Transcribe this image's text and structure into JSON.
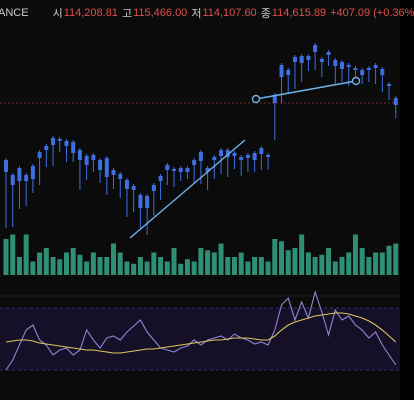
{
  "header": {
    "symbol_fragment": "ANCE",
    "open_label": "시",
    "open_value": "114,208.81",
    "high_label": "고",
    "high_value": "115,466.00",
    "low_label": "저",
    "low_value": "114,107.60",
    "close_label": "종",
    "close_value": "114,615.89",
    "change_value": "+407.09",
    "change_pct": "(+0.36%"
  },
  "colors": {
    "up": "#e0504a",
    "down": "#3d6fe0",
    "volume_up": "#a84a44",
    "volume_down": "#2f8f74",
    "trendline": "#6fb3ea",
    "rsi_line": "#8f86d6",
    "rsi_ma": "#e2c55a",
    "rsi_band": "#1a1430",
    "indicator_dot": "#1fa37a"
  },
  "chart_data": {
    "type": "candlestick",
    "candles": [
      [
        226,
        160,
        172,
        212
      ],
      [
        212,
        175,
        185,
        225
      ],
      [
        196,
        168,
        181,
        207
      ],
      [
        196,
        175,
        181,
        204
      ],
      [
        183,
        166,
        179,
        191
      ],
      [
        174,
        152,
        158,
        183
      ],
      [
        157,
        146,
        150,
        165
      ],
      [
        159,
        138,
        145,
        164
      ],
      [
        146,
        139,
        141,
        150
      ],
      [
        152,
        141,
        146,
        160
      ],
      [
        157,
        142,
        153,
        160
      ],
      [
        188,
        150,
        160,
        188
      ],
      [
        174,
        156,
        165,
        178
      ],
      [
        167,
        155,
        160,
        170
      ],
      [
        179,
        160,
        170,
        181
      ],
      [
        188,
        158,
        177,
        193
      ],
      [
        181,
        170,
        175,
        187
      ],
      [
        194,
        174,
        179,
        196
      ],
      [
        205,
        180,
        189,
        215
      ],
      [
        208,
        186,
        190,
        210
      ],
      [
        217,
        195,
        208,
        226
      ],
      [
        229,
        196,
        208,
        233
      ],
      [
        208,
        185,
        191,
        214
      ],
      [
        197,
        176,
        181,
        198
      ],
      [
        182,
        165,
        170,
        183
      ],
      [
        182,
        169,
        171,
        185
      ],
      [
        176,
        168,
        172,
        179
      ],
      [
        176,
        168,
        172,
        177
      ],
      [
        180,
        160,
        165,
        181
      ],
      [
        175,
        152,
        161,
        182
      ],
      [
        186,
        168,
        172,
        188
      ],
      [
        172,
        157,
        160,
        177
      ],
      [
        165,
        150,
        156,
        172
      ],
      [
        167,
        150,
        157,
        175
      ],
      [
        162,
        153,
        156,
        167
      ],
      [
        173,
        157,
        160,
        174
      ],
      [
        168,
        155,
        158,
        170
      ],
      [
        167,
        153,
        160,
        170
      ],
      [
        164,
        148,
        154,
        168
      ],
      [
        167,
        155,
        157,
        168
      ],
      [
        133,
        95,
        103,
        138
      ],
      [
        95,
        65,
        77,
        101
      ],
      [
        86,
        70,
        75,
        91
      ],
      [
        85,
        57,
        62,
        87
      ],
      [
        76,
        56,
        63,
        80
      ],
      [
        66,
        56,
        60,
        69
      ],
      [
        66,
        45,
        52,
        68
      ],
      [
        75,
        59,
        62,
        74
      ],
      [
        60,
        52,
        55,
        64
      ],
      [
        82,
        60,
        66,
        79
      ],
      [
        75,
        62,
        69,
        80
      ],
      [
        82,
        65,
        67,
        84
      ],
      [
        80,
        68,
        70,
        80
      ],
      [
        80,
        70,
        75,
        82
      ],
      [
        79,
        68,
        70,
        80
      ],
      [
        77,
        65,
        68,
        82
      ],
      [
        88,
        69,
        75,
        90
      ],
      [
        95,
        84,
        86,
        98
      ],
      [
        116,
        98,
        105,
        116
      ]
    ],
    "volume": [
      0.8,
      0.9,
      0.4,
      0.9,
      0.3,
      0.5,
      0.6,
      0.4,
      0.35,
      0.5,
      0.6,
      0.45,
      0.3,
      0.5,
      0.4,
      0.4,
      0.7,
      0.5,
      0.3,
      0.25,
      0.4,
      0.3,
      0.5,
      0.4,
      0.3,
      0.6,
      0.25,
      0.35,
      0.3,
      0.6,
      0.55,
      0.5,
      0.7,
      0.4,
      0.4,
      0.5,
      0.3,
      0.4,
      0.4,
      0.3,
      0.8,
      0.75,
      0.55,
      0.6,
      0.9,
      0.5,
      0.4,
      0.45,
      0.6,
      0.3,
      0.4,
      0.5,
      0.9,
      0.6,
      0.4,
      0.5,
      0.5,
      0.65,
      0.7
    ],
    "rsi": [
      370,
      360,
      345,
      330,
      325,
      340,
      345,
      355,
      350,
      348,
      355,
      350,
      330,
      340,
      348,
      338,
      336,
      340,
      332,
      326,
      320,
      332,
      340,
      348,
      350,
      352,
      348,
      346,
      340,
      345,
      340,
      338,
      336,
      340,
      334,
      338,
      340,
      344,
      342,
      345,
      330,
      305,
      298,
      320,
      302,
      318,
      292,
      312,
      335,
      310,
      320,
      316,
      325,
      330,
      338,
      332,
      345,
      355,
      365
    ],
    "rsi_ma": [
      342,
      341,
      340,
      340,
      341,
      343,
      344,
      345,
      346,
      347,
      348,
      349,
      350,
      350,
      351,
      352,
      353,
      353,
      352,
      351,
      350,
      349,
      349,
      348,
      347,
      346,
      345,
      344,
      343,
      342,
      341,
      340,
      340,
      339,
      338,
      338,
      338,
      339,
      340,
      340,
      336,
      330,
      325,
      322,
      320,
      318,
      316,
      315,
      314,
      313,
      313,
      314,
      316,
      318,
      321,
      325,
      330,
      336,
      342
    ]
  }
}
